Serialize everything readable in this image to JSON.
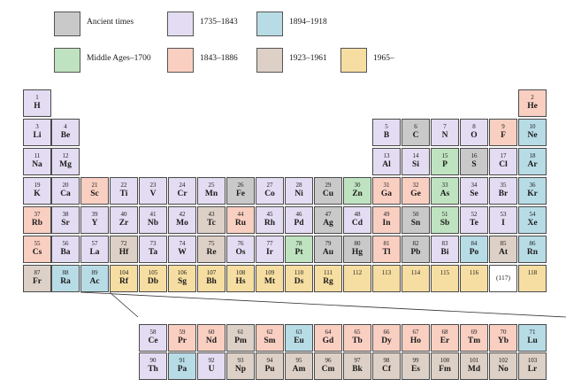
{
  "colors": {
    "ancient": "#c9c9c9",
    "middle": "#bfe3c0",
    "p1735": "#e3dcf2",
    "p1843": "#f9cfc2",
    "p1894": "#b8dce6",
    "p1923": "#ddd0c6",
    "p1965": "#f6dea2",
    "undiscovered": "#ffffff"
  },
  "legend": [
    {
      "key": "ancient",
      "label": "Ancient times"
    },
    {
      "key": "p1735",
      "label": "1735–1843"
    },
    {
      "key": "p1894",
      "label": "1894–1918"
    },
    {
      "key": "middle",
      "label": "Middle Ages–1700"
    },
    {
      "key": "p1843",
      "label": "1843–1886"
    },
    {
      "key": "p1923",
      "label": "1923–1961"
    },
    {
      "key": "p1965",
      "label": "1965–"
    }
  ],
  "elements": [
    {
      "n": "1",
      "s": "H",
      "r": 1,
      "c": 1,
      "p": "p1735"
    },
    {
      "n": "2",
      "s": "He",
      "r": 1,
      "c": 18,
      "p": "p1843"
    },
    {
      "n": "3",
      "s": "Li",
      "r": 2,
      "c": 1,
      "p": "p1735"
    },
    {
      "n": "4",
      "s": "Be",
      "r": 2,
      "c": 2,
      "p": "p1735"
    },
    {
      "n": "5",
      "s": "B",
      "r": 2,
      "c": 13,
      "p": "p1735"
    },
    {
      "n": "6",
      "s": "C",
      "r": 2,
      "c": 14,
      "p": "ancient"
    },
    {
      "n": "7",
      "s": "N",
      "r": 2,
      "c": 15,
      "p": "p1735"
    },
    {
      "n": "8",
      "s": "O",
      "r": 2,
      "c": 16,
      "p": "p1735"
    },
    {
      "n": "9",
      "s": "F",
      "r": 2,
      "c": 17,
      "p": "p1843"
    },
    {
      "n": "10",
      "s": "Ne",
      "r": 2,
      "c": 18,
      "p": "p1894"
    },
    {
      "n": "11",
      "s": "Na",
      "r": 3,
      "c": 1,
      "p": "p1735"
    },
    {
      "n": "12",
      "s": "Mg",
      "r": 3,
      "c": 2,
      "p": "p1735"
    },
    {
      "n": "13",
      "s": "Al",
      "r": 3,
      "c": 13,
      "p": "p1735"
    },
    {
      "n": "14",
      "s": "Si",
      "r": 3,
      "c": 14,
      "p": "p1735"
    },
    {
      "n": "15",
      "s": "P",
      "r": 3,
      "c": 15,
      "p": "middle"
    },
    {
      "n": "16",
      "s": "S",
      "r": 3,
      "c": 16,
      "p": "ancient"
    },
    {
      "n": "17",
      "s": "Cl",
      "r": 3,
      "c": 17,
      "p": "p1735"
    },
    {
      "n": "18",
      "s": "Ar",
      "r": 3,
      "c": 18,
      "p": "p1894"
    },
    {
      "n": "19",
      "s": "K",
      "r": 4,
      "c": 1,
      "p": "p1735"
    },
    {
      "n": "20",
      "s": "Ca",
      "r": 4,
      "c": 2,
      "p": "p1735"
    },
    {
      "n": "21",
      "s": "Sc",
      "r": 4,
      "c": 3,
      "p": "p1843"
    },
    {
      "n": "22",
      "s": "Ti",
      "r": 4,
      "c": 4,
      "p": "p1735"
    },
    {
      "n": "23",
      "s": "V",
      "r": 4,
      "c": 5,
      "p": "p1735"
    },
    {
      "n": "24",
      "s": "Cr",
      "r": 4,
      "c": 6,
      "p": "p1735"
    },
    {
      "n": "25",
      "s": "Mn",
      "r": 4,
      "c": 7,
      "p": "p1735"
    },
    {
      "n": "26",
      "s": "Fe",
      "r": 4,
      "c": 8,
      "p": "ancient"
    },
    {
      "n": "27",
      "s": "Co",
      "r": 4,
      "c": 9,
      "p": "p1735"
    },
    {
      "n": "28",
      "s": "Ni",
      "r": 4,
      "c": 10,
      "p": "p1735"
    },
    {
      "n": "29",
      "s": "Cu",
      "r": 4,
      "c": 11,
      "p": "ancient"
    },
    {
      "n": "30",
      "s": "Zn",
      "r": 4,
      "c": 12,
      "p": "middle"
    },
    {
      "n": "31",
      "s": "Ga",
      "r": 4,
      "c": 13,
      "p": "p1843"
    },
    {
      "n": "32",
      "s": "Ge",
      "r": 4,
      "c": 14,
      "p": "p1843"
    },
    {
      "n": "33",
      "s": "As",
      "r": 4,
      "c": 15,
      "p": "middle"
    },
    {
      "n": "34",
      "s": "Se",
      "r": 4,
      "c": 16,
      "p": "p1735"
    },
    {
      "n": "35",
      "s": "Br",
      "r": 4,
      "c": 17,
      "p": "p1735"
    },
    {
      "n": "36",
      "s": "Kr",
      "r": 4,
      "c": 18,
      "p": "p1894"
    },
    {
      "n": "37",
      "s": "Rb",
      "r": 5,
      "c": 1,
      "p": "p1843"
    },
    {
      "n": "38",
      "s": "Sr",
      "r": 5,
      "c": 2,
      "p": "p1735"
    },
    {
      "n": "39",
      "s": "Y",
      "r": 5,
      "c": 3,
      "p": "p1735"
    },
    {
      "n": "40",
      "s": "Zr",
      "r": 5,
      "c": 4,
      "p": "p1735"
    },
    {
      "n": "41",
      "s": "Nb",
      "r": 5,
      "c": 5,
      "p": "p1735"
    },
    {
      "n": "42",
      "s": "Mo",
      "r": 5,
      "c": 6,
      "p": "p1735"
    },
    {
      "n": "43",
      "s": "Tc",
      "r": 5,
      "c": 7,
      "p": "p1923"
    },
    {
      "n": "44",
      "s": "Ru",
      "r": 5,
      "c": 8,
      "p": "p1843"
    },
    {
      "n": "45",
      "s": "Rh",
      "r": 5,
      "c": 9,
      "p": "p1735"
    },
    {
      "n": "46",
      "s": "Pd",
      "r": 5,
      "c": 10,
      "p": "p1735"
    },
    {
      "n": "47",
      "s": "Ag",
      "r": 5,
      "c": 11,
      "p": "ancient"
    },
    {
      "n": "48",
      "s": "Cd",
      "r": 5,
      "c": 12,
      "p": "p1735"
    },
    {
      "n": "49",
      "s": "In",
      "r": 5,
      "c": 13,
      "p": "p1843"
    },
    {
      "n": "50",
      "s": "Sn",
      "r": 5,
      "c": 14,
      "p": "ancient"
    },
    {
      "n": "51",
      "s": "Sb",
      "r": 5,
      "c": 15,
      "p": "middle"
    },
    {
      "n": "52",
      "s": "Te",
      "r": 5,
      "c": 16,
      "p": "p1735"
    },
    {
      "n": "53",
      "s": "I",
      "r": 5,
      "c": 17,
      "p": "p1735"
    },
    {
      "n": "54",
      "s": "Xe",
      "r": 5,
      "c": 18,
      "p": "p1894"
    },
    {
      "n": "55",
      "s": "Cs",
      "r": 6,
      "c": 1,
      "p": "p1843"
    },
    {
      "n": "56",
      "s": "Ba",
      "r": 6,
      "c": 2,
      "p": "p1735"
    },
    {
      "n": "57",
      "s": "La",
      "r": 6,
      "c": 3,
      "p": "p1735"
    },
    {
      "n": "72",
      "s": "Hf",
      "r": 6,
      "c": 4,
      "p": "p1923"
    },
    {
      "n": "73",
      "s": "Ta",
      "r": 6,
      "c": 5,
      "p": "p1735"
    },
    {
      "n": "74",
      "s": "W",
      "r": 6,
      "c": 6,
      "p": "p1735"
    },
    {
      "n": "75",
      "s": "Re",
      "r": 6,
      "c": 7,
      "p": "p1923"
    },
    {
      "n": "76",
      "s": "Os",
      "r": 6,
      "c": 8,
      "p": "p1735"
    },
    {
      "n": "77",
      "s": "Ir",
      "r": 6,
      "c": 9,
      "p": "p1735"
    },
    {
      "n": "78",
      "s": "Pt",
      "r": 6,
      "c": 10,
      "p": "middle"
    },
    {
      "n": "79",
      "s": "Au",
      "r": 6,
      "c": 11,
      "p": "ancient"
    },
    {
      "n": "80",
      "s": "Hg",
      "r": 6,
      "c": 12,
      "p": "ancient"
    },
    {
      "n": "81",
      "s": "Tl",
      "r": 6,
      "c": 13,
      "p": "p1843"
    },
    {
      "n": "82",
      "s": "Pb",
      "r": 6,
      "c": 14,
      "p": "ancient"
    },
    {
      "n": "83",
      "s": "Bi",
      "r": 6,
      "c": 15,
      "p": "p1735"
    },
    {
      "n": "84",
      "s": "Po",
      "r": 6,
      "c": 16,
      "p": "p1894"
    },
    {
      "n": "85",
      "s": "At",
      "r": 6,
      "c": 17,
      "p": "p1923"
    },
    {
      "n": "86",
      "s": "Rn",
      "r": 6,
      "c": 18,
      "p": "p1894"
    },
    {
      "n": "87",
      "s": "Fr",
      "r": 7,
      "c": 1,
      "p": "p1923"
    },
    {
      "n": "88",
      "s": "Ra",
      "r": 7,
      "c": 2,
      "p": "p1894"
    },
    {
      "n": "89",
      "s": "Ac",
      "r": 7,
      "c": 3,
      "p": "p1894"
    },
    {
      "n": "104",
      "s": "Rf",
      "r": 7,
      "c": 4,
      "p": "p1965"
    },
    {
      "n": "105",
      "s": "Db",
      "r": 7,
      "c": 5,
      "p": "p1965"
    },
    {
      "n": "106",
      "s": "Sg",
      "r": 7,
      "c": 6,
      "p": "p1965"
    },
    {
      "n": "107",
      "s": "Bh",
      "r": 7,
      "c": 7,
      "p": "p1965"
    },
    {
      "n": "108",
      "s": "Hs",
      "r": 7,
      "c": 8,
      "p": "p1965"
    },
    {
      "n": "109",
      "s": "Mt",
      "r": 7,
      "c": 9,
      "p": "p1965"
    },
    {
      "n": "110",
      "s": "Ds",
      "r": 7,
      "c": 10,
      "p": "p1965"
    },
    {
      "n": "111",
      "s": "Rg",
      "r": 7,
      "c": 11,
      "p": "p1965"
    },
    {
      "n": "112",
      "s": "",
      "r": 7,
      "c": 12,
      "p": "p1965"
    },
    {
      "n": "113",
      "s": "",
      "r": 7,
      "c": 13,
      "p": "p1965"
    },
    {
      "n": "114",
      "s": "",
      "r": 7,
      "c": 14,
      "p": "p1965"
    },
    {
      "n": "115",
      "s": "",
      "r": 7,
      "c": 15,
      "p": "p1965"
    },
    {
      "n": "116",
      "s": "",
      "r": 7,
      "c": 16,
      "p": "p1965"
    },
    {
      "n": "(117)",
      "s": "",
      "r": 7,
      "c": 17,
      "p": "undiscovered"
    },
    {
      "n": "118",
      "s": "",
      "r": 7,
      "c": 18,
      "p": "p1965"
    },
    {
      "n": "58",
      "s": "Ce",
      "r": 8,
      "c": 5,
      "p": "p1735"
    },
    {
      "n": "59",
      "s": "Pr",
      "r": 8,
      "c": 6,
      "p": "p1843"
    },
    {
      "n": "60",
      "s": "Nd",
      "r": 8,
      "c": 7,
      "p": "p1843"
    },
    {
      "n": "61",
      "s": "Pm",
      "r": 8,
      "c": 8,
      "p": "p1923"
    },
    {
      "n": "62",
      "s": "Sm",
      "r": 8,
      "c": 9,
      "p": "p1843"
    },
    {
      "n": "63",
      "s": "Eu",
      "r": 8,
      "c": 10,
      "p": "p1894"
    },
    {
      "n": "64",
      "s": "Gd",
      "r": 8,
      "c": 11,
      "p": "p1843"
    },
    {
      "n": "65",
      "s": "Tb",
      "r": 8,
      "c": 12,
      "p": "p1843"
    },
    {
      "n": "66",
      "s": "Dy",
      "r": 8,
      "c": 13,
      "p": "p1843"
    },
    {
      "n": "67",
      "s": "Ho",
      "r": 8,
      "c": 14,
      "p": "p1843"
    },
    {
      "n": "68",
      "s": "Er",
      "r": 8,
      "c": 15,
      "p": "p1843"
    },
    {
      "n": "69",
      "s": "Tm",
      "r": 8,
      "c": 16,
      "p": "p1843"
    },
    {
      "n": "70",
      "s": "Yb",
      "r": 8,
      "c": 17,
      "p": "p1843"
    },
    {
      "n": "71",
      "s": "Lu",
      "r": 8,
      "c": 18,
      "p": "p1894"
    },
    {
      "n": "90",
      "s": "Th",
      "r": 9,
      "c": 5,
      "p": "p1735"
    },
    {
      "n": "91",
      "s": "Pa",
      "r": 9,
      "c": 6,
      "p": "p1894"
    },
    {
      "n": "92",
      "s": "U",
      "r": 9,
      "c": 7,
      "p": "p1735"
    },
    {
      "n": "93",
      "s": "Np",
      "r": 9,
      "c": 8,
      "p": "p1923"
    },
    {
      "n": "94",
      "s": "Pu",
      "r": 9,
      "c": 9,
      "p": "p1923"
    },
    {
      "n": "95",
      "s": "Am",
      "r": 9,
      "c": 10,
      "p": "p1923"
    },
    {
      "n": "96",
      "s": "Cm",
      "r": 9,
      "c": 11,
      "p": "p1923"
    },
    {
      "n": "97",
      "s": "Bk",
      "r": 9,
      "c": 12,
      "p": "p1923"
    },
    {
      "n": "98",
      "s": "Cf",
      "r": 9,
      "c": 13,
      "p": "p1923"
    },
    {
      "n": "99",
      "s": "Es",
      "r": 9,
      "c": 14,
      "p": "p1923"
    },
    {
      "n": "100",
      "s": "Fm",
      "r": 9,
      "c": 15,
      "p": "p1923"
    },
    {
      "n": "101",
      "s": "Md",
      "r": 9,
      "c": 16,
      "p": "p1923"
    },
    {
      "n": "102",
      "s": "No",
      "r": 9,
      "c": 17,
      "p": "p1923"
    },
    {
      "n": "103",
      "s": "Lr",
      "r": 9,
      "c": 18,
      "p": "p1923"
    }
  ]
}
